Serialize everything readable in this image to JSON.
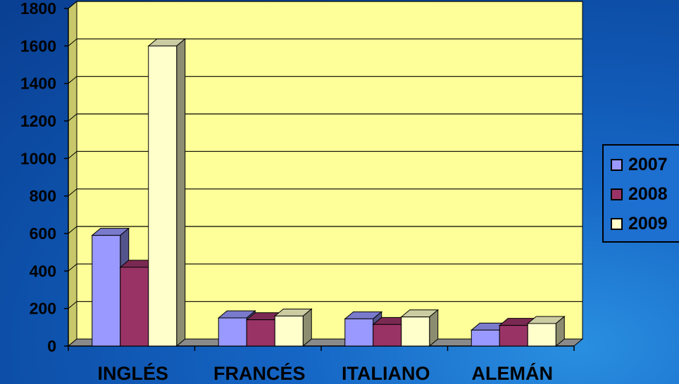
{
  "chart_data": {
    "type": "bar",
    "categories": [
      "INGLÉS",
      "FRANCÉS",
      "ITALIANO",
      "ALEMÁN"
    ],
    "series": [
      {
        "name": "2007",
        "values": [
          590,
          150,
          145,
          85
        ],
        "color": "#9999ff"
      },
      {
        "name": "2008",
        "values": [
          420,
          140,
          115,
          110
        ],
        "color": "#993366"
      },
      {
        "name": "2009",
        "values": [
          1600,
          160,
          155,
          120
        ],
        "color": "#ffffcc"
      }
    ],
    "ylim": [
      0,
      1800
    ],
    "yticks": [
      "0",
      "200",
      "400",
      "600",
      "800",
      "1000",
      "1200",
      "1400",
      "1600",
      "1800"
    ],
    "grid": true,
    "legend_position": "right",
    "plot_wall_color": "#ffff99"
  }
}
